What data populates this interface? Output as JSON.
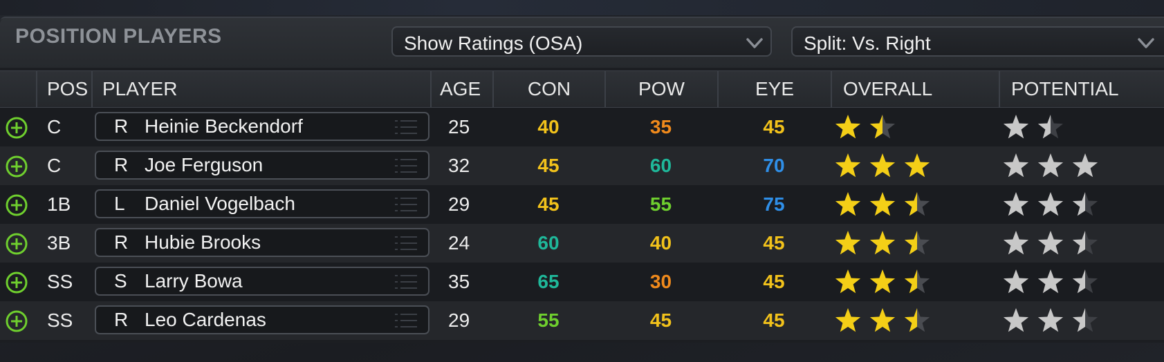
{
  "panel": {
    "title": "POSITION PLAYERS",
    "ratings_dropdown": "Show Ratings (OSA)",
    "split_dropdown": "Split: Vs. Right"
  },
  "columns": {
    "pos": "POS",
    "player": "PLAYER",
    "age": "AGE",
    "con": "CON",
    "pow": "POW",
    "eye": "EYE",
    "overall": "OVERALL",
    "potential": "POTENTIAL"
  },
  "colors": {
    "rating_30": "#f08a1c",
    "rating_35": "#f08a1c",
    "rating_40": "#f2c21b",
    "rating_45": "#f2c21b",
    "rating_55": "#6fcf2e",
    "rating_60": "#1fb89a",
    "rating_65": "#1fb89a",
    "rating_70": "#2f8fe8",
    "rating_75": "#2f8fe8",
    "overall_star": "#f4cf17",
    "potential_star": "#c8c8c8",
    "add_icon": "#6fcf2e"
  },
  "rows": [
    {
      "pos": "C",
      "bats": "R",
      "name": "Heinie Beckendorf",
      "age": "25",
      "con": "40",
      "pow": "35",
      "eye": "45",
      "overall": 1.5,
      "potential": 1.5
    },
    {
      "pos": "C",
      "bats": "R",
      "name": "Joe Ferguson",
      "age": "32",
      "con": "45",
      "pow": "60",
      "eye": "70",
      "overall": 3.0,
      "potential": 3.0
    },
    {
      "pos": "1B",
      "bats": "L",
      "name": "Daniel Vogelbach",
      "age": "29",
      "con": "45",
      "pow": "55",
      "eye": "75",
      "overall": 2.5,
      "potential": 2.5
    },
    {
      "pos": "3B",
      "bats": "R",
      "name": "Hubie Brooks",
      "age": "24",
      "con": "60",
      "pow": "40",
      "eye": "45",
      "overall": 2.5,
      "potential": 2.5
    },
    {
      "pos": "SS",
      "bats": "S",
      "name": "Larry Bowa",
      "age": "35",
      "con": "65",
      "pow": "30",
      "eye": "45",
      "overall": 2.5,
      "potential": 2.5
    },
    {
      "pos": "SS",
      "bats": "R",
      "name": "Leo Cardenas",
      "age": "29",
      "con": "55",
      "pow": "45",
      "eye": "45",
      "overall": 2.5,
      "potential": 2.5
    }
  ]
}
